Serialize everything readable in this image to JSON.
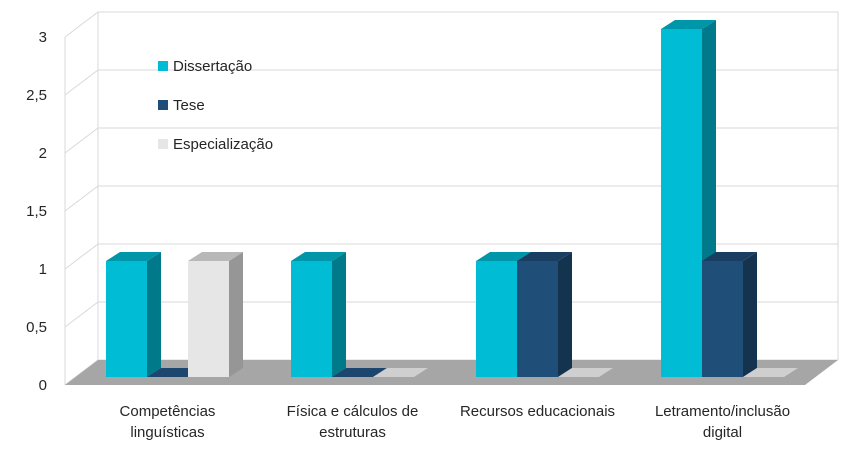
{
  "chart_data": {
    "type": "bar",
    "style": "3d-clustered-column",
    "categories": [
      [
        "Competências",
        "linguísticas"
      ],
      [
        "Física e cálculos de",
        "estruturas"
      ],
      [
        "Recursos educacionais"
      ],
      [
        "Letramento/inclusão",
        "digital"
      ]
    ],
    "series": [
      {
        "name": "Dissertação",
        "values": [
          1,
          1,
          1,
          3
        ],
        "color": "#00BCD4"
      },
      {
        "name": "Tese",
        "values": [
          0,
          0,
          1,
          1
        ],
        "color": "#1F4E79"
      },
      {
        "name": "Especialização",
        "values": [
          1,
          0,
          0,
          0
        ],
        "color": "#E6E6E6"
      }
    ],
    "ylim": [
      0,
      3
    ],
    "y_ticks": [
      "0",
      "0,5",
      "1",
      "1,5",
      "2",
      "2,5",
      "3"
    ],
    "grid": true,
    "legend_position": "top-left inside plot",
    "floor_color": "#A6A6A6"
  }
}
